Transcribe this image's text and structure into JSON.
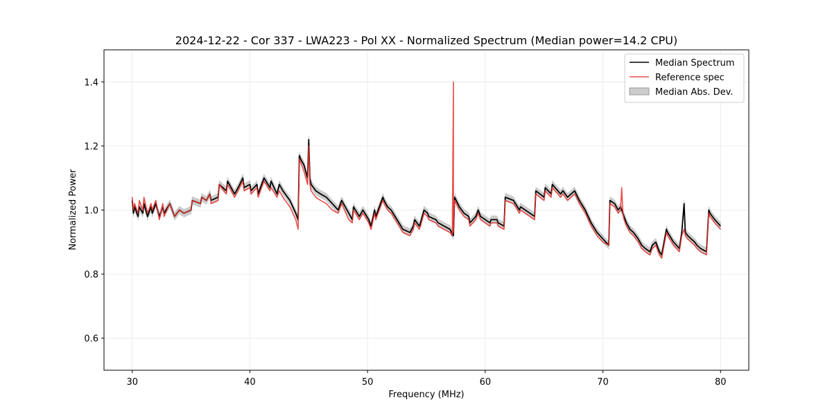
{
  "chart_data": {
    "type": "line",
    "title": "2024-12-22 - Cor 337 - LWA223 - Pol XX - Normalized Spectrum (Median power=14.2 CPU)",
    "xlabel": "Frequency (MHz)",
    "ylabel": "Normalized Power",
    "xlim": [
      27.6,
      82.4
    ],
    "ylim": [
      0.5,
      1.5
    ],
    "xticks": [
      30,
      40,
      50,
      60,
      70,
      80
    ],
    "xtick_labels": [
      "30",
      "40",
      "50",
      "60",
      "70",
      "80"
    ],
    "yticks": [
      0.6,
      0.8,
      1.0,
      1.2,
      1.4
    ],
    "ytick_labels": [
      "0.6",
      "0.8",
      "1.0",
      "1.2",
      "1.4"
    ],
    "grid": true,
    "legend_position": "upper right",
    "series": [
      {
        "name": "Median Spectrum",
        "color": "#000000",
        "x": [
          30.0,
          30.1,
          30.2,
          30.5,
          30.6,
          30.9,
          31.0,
          31.3,
          31.6,
          31.7,
          32.0,
          32.3,
          32.6,
          32.7,
          33.2,
          33.6,
          34.0,
          34.4,
          35.0,
          35.1,
          35.8,
          35.9,
          36.3,
          36.6,
          36.7,
          37.3,
          37.4,
          38.0,
          38.1,
          38.7,
          39.0,
          39.4,
          39.5,
          40.0,
          40.1,
          40.6,
          40.7,
          41.2,
          41.7,
          41.8,
          42.3,
          42.5,
          42.8,
          43.4,
          43.9,
          44.1,
          44.2,
          44.3,
          44.6,
          44.9,
          45.0,
          45.1,
          45.2,
          45.6,
          46.0,
          46.5,
          47.0,
          47.5,
          47.8,
          48.4,
          48.7,
          48.8,
          49.3,
          49.6,
          50.1,
          50.3,
          50.6,
          50.7,
          51.3,
          51.4,
          51.7,
          52.0,
          52.5,
          53.0,
          53.6,
          53.9,
          54.0,
          54.4,
          54.5,
          54.8,
          55.1,
          55.2,
          55.8,
          56.0,
          56.5,
          57.0,
          57.3,
          57.4,
          57.8,
          58.0,
          58.2,
          58.6,
          58.7,
          59.2,
          59.4,
          59.6,
          60.4,
          60.5,
          61.0,
          61.1,
          61.6,
          61.7,
          62.4,
          62.9,
          63.0,
          63.8,
          64.2,
          64.3,
          65.0,
          65.1,
          65.6,
          65.7,
          66.4,
          66.6,
          67.0,
          67.6,
          68.0,
          68.5,
          69.0,
          69.5,
          70.0,
          70.5,
          70.6,
          71.0,
          71.3,
          71.5,
          71.8,
          72.0,
          72.3,
          72.6,
          73.0,
          73.3,
          73.6,
          74.0,
          74.2,
          74.5,
          74.8,
          75.0,
          75.4,
          75.5,
          76.0,
          76.5,
          76.7,
          76.9,
          77.0,
          77.2,
          77.5,
          77.8,
          78.0,
          78.3,
          78.8,
          79.0,
          79.1,
          79.5,
          80.0
        ],
        "y": [
          1.03,
          0.99,
          1.01,
          0.98,
          1.01,
          0.99,
          1.02,
          0.98,
          1.01,
          0.99,
          1.02,
          0.98,
          1.01,
          0.99,
          1.02,
          0.98,
          1.0,
          0.99,
          1.0,
          1.03,
          1.02,
          1.04,
          1.03,
          1.05,
          1.03,
          1.04,
          1.08,
          1.06,
          1.09,
          1.05,
          1.07,
          1.1,
          1.07,
          1.08,
          1.06,
          1.08,
          1.05,
          1.1,
          1.07,
          1.09,
          1.05,
          1.08,
          1.06,
          1.03,
          0.99,
          0.97,
          1.17,
          1.16,
          1.14,
          1.1,
          1.22,
          1.1,
          1.08,
          1.06,
          1.05,
          1.04,
          1.02,
          1.0,
          1.03,
          0.99,
          0.97,
          1.01,
          0.98,
          1.0,
          0.97,
          0.95,
          1.0,
          0.98,
          1.04,
          1.03,
          1.01,
          1.0,
          0.97,
          0.94,
          0.93,
          0.95,
          0.97,
          0.95,
          0.96,
          1.0,
          0.99,
          0.98,
          0.97,
          0.96,
          0.95,
          0.94,
          0.92,
          1.04,
          1.01,
          1.0,
          0.99,
          0.98,
          0.96,
          0.98,
          1.0,
          0.98,
          0.96,
          0.97,
          0.97,
          0.96,
          0.95,
          1.04,
          1.03,
          1.0,
          1.01,
          0.99,
          0.98,
          1.06,
          1.04,
          1.07,
          1.05,
          1.08,
          1.05,
          1.06,
          1.04,
          1.06,
          1.03,
          1.0,
          0.96,
          0.93,
          0.91,
          0.89,
          1.03,
          1.02,
          1.0,
          1.01,
          0.98,
          0.96,
          0.94,
          0.93,
          0.91,
          0.89,
          0.88,
          0.87,
          0.89,
          0.9,
          0.87,
          0.86,
          0.94,
          0.93,
          0.9,
          0.88,
          0.93,
          1.02,
          0.93,
          0.92,
          0.91,
          0.9,
          0.89,
          0.88,
          0.87,
          1.0,
          0.99,
          0.97,
          0.95
        ]
      },
      {
        "name": "Reference spec",
        "color": "#e8302a",
        "x": [
          30.0,
          30.1,
          30.2,
          30.5,
          30.6,
          30.9,
          31.0,
          31.3,
          31.6,
          31.7,
          32.0,
          32.3,
          32.6,
          32.7,
          33.2,
          33.6,
          34.0,
          34.4,
          35.0,
          35.1,
          35.8,
          35.9,
          36.3,
          36.6,
          36.7,
          37.3,
          37.4,
          38.0,
          38.1,
          38.7,
          39.0,
          39.4,
          39.5,
          40.0,
          40.1,
          40.6,
          40.7,
          41.2,
          41.7,
          41.8,
          42.3,
          42.5,
          42.8,
          43.4,
          43.9,
          44.1,
          44.2,
          44.3,
          44.6,
          44.9,
          45.0,
          45.1,
          45.2,
          45.6,
          46.0,
          46.5,
          47.0,
          47.5,
          47.8,
          48.4,
          48.7,
          48.8,
          49.3,
          49.6,
          50.1,
          50.3,
          50.6,
          50.7,
          51.3,
          51.4,
          51.7,
          52.0,
          52.5,
          53.0,
          53.6,
          53.9,
          54.0,
          54.4,
          54.5,
          54.8,
          55.1,
          55.2,
          55.8,
          56.0,
          56.5,
          57.0,
          57.2,
          57.3,
          57.3,
          57.4,
          57.8,
          58.0,
          58.2,
          58.6,
          58.7,
          59.2,
          59.4,
          59.6,
          60.4,
          60.5,
          61.0,
          61.1,
          61.6,
          61.7,
          62.4,
          62.9,
          63.0,
          63.8,
          64.2,
          64.3,
          65.0,
          65.1,
          65.6,
          65.7,
          66.4,
          66.6,
          67.0,
          67.6,
          68.0,
          68.5,
          69.0,
          69.5,
          70.0,
          70.5,
          70.6,
          71.0,
          71.3,
          71.5,
          71.6,
          71.7,
          71.8,
          72.0,
          72.3,
          72.6,
          73.0,
          73.3,
          73.6,
          74.0,
          74.2,
          74.5,
          74.8,
          75.0,
          75.4,
          75.5,
          76.0,
          76.5,
          76.7,
          76.9,
          77.0,
          77.2,
          77.5,
          77.8,
          78.0,
          78.3,
          78.8,
          79.0,
          79.1,
          79.5,
          80.0
        ],
        "y": [
          1.04,
          1.0,
          1.02,
          0.99,
          1.03,
          1.0,
          1.04,
          0.99,
          1.02,
          1.0,
          1.03,
          0.97,
          1.02,
          0.98,
          1.02,
          0.98,
          1.0,
          0.99,
          1.0,
          1.03,
          1.02,
          1.04,
          1.03,
          1.05,
          1.02,
          1.03,
          1.08,
          1.05,
          1.08,
          1.04,
          1.06,
          1.09,
          1.06,
          1.07,
          1.05,
          1.07,
          1.04,
          1.09,
          1.06,
          1.07,
          1.04,
          1.06,
          1.04,
          1.01,
          0.97,
          0.94,
          1.16,
          1.15,
          1.12,
          1.08,
          1.2,
          1.08,
          1.06,
          1.04,
          1.03,
          1.02,
          1.0,
          0.99,
          1.02,
          0.97,
          0.96,
          1.0,
          0.97,
          0.99,
          0.96,
          0.94,
          0.99,
          0.97,
          1.03,
          1.02,
          1.0,
          0.99,
          0.96,
          0.93,
          0.92,
          0.94,
          0.96,
          0.94,
          0.95,
          0.99,
          0.98,
          0.97,
          0.96,
          0.95,
          0.94,
          0.93,
          0.92,
          1.4,
          0.93,
          1.03,
          1.0,
          0.99,
          0.98,
          0.97,
          0.95,
          0.97,
          0.99,
          0.97,
          0.95,
          0.96,
          0.96,
          0.95,
          0.94,
          1.03,
          1.02,
          0.99,
          1.0,
          0.98,
          0.97,
          1.05,
          1.03,
          1.06,
          1.04,
          1.07,
          1.04,
          1.05,
          1.03,
          1.05,
          1.02,
          0.99,
          0.95,
          0.92,
          0.9,
          0.89,
          1.02,
          1.01,
          0.99,
          1.0,
          1.07,
          0.99,
          0.97,
          0.95,
          0.93,
          0.92,
          0.9,
          0.88,
          0.87,
          0.86,
          0.88,
          0.89,
          0.86,
          0.85,
          0.93,
          0.92,
          0.89,
          0.87,
          0.92,
          0.94,
          0.92,
          0.91,
          0.9,
          0.89,
          0.88,
          0.87,
          0.86,
          0.99,
          0.98,
          0.96,
          0.94
        ]
      }
    ],
    "mad_band": {
      "name": "Median Abs. Dev.",
      "color": "#999999",
      "width": 0.012
    },
    "legend": [
      "Median Spectrum",
      "Reference spec",
      "Median Abs. Dev."
    ]
  }
}
